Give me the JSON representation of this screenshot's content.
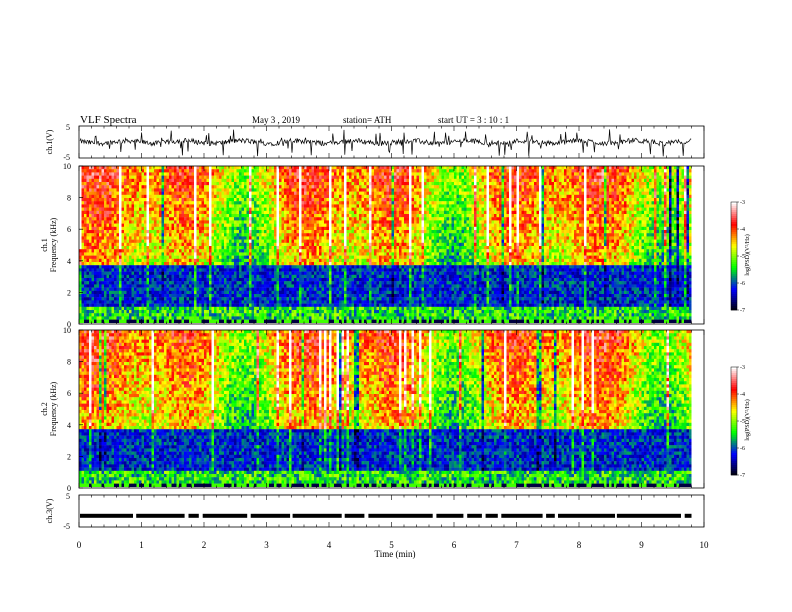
{
  "header": {
    "title": "VLF Spectra",
    "date": "May 3 , 2019",
    "station": "station= ATH",
    "start": "start UT = 3 : 10 : 1"
  },
  "colors": {
    "colormap": [
      "#000000",
      "#0000ff",
      "#00ff00",
      "#ffff00",
      "#ff0000",
      "#ffffff"
    ],
    "trace": "#000000"
  },
  "chart_data": [
    {
      "type": "line",
      "name": "ch1-waveform",
      "ylabel": "ch.1(V)",
      "ylim": [
        -5,
        5
      ],
      "yticks": [
        "5",
        "-5"
      ],
      "xlim": [
        0,
        10
      ],
      "baseline": 0
    },
    {
      "type": "heatmap",
      "name": "ch1-spectrogram",
      "ylabel_channel": "ch.1",
      "ylabel": "Frequency (kHz)",
      "ylim": [
        0,
        10
      ],
      "yticks": [
        "0",
        "2",
        "4",
        "6",
        "8",
        "10"
      ],
      "xlim": [
        0,
        9.8
      ],
      "colorbar": {
        "label": "log(PSD)(V²/Hz)",
        "range": [
          -7,
          -3
        ],
        "ticks": [
          "-3",
          "-4",
          "-5",
          "-6",
          "-7"
        ]
      }
    },
    {
      "type": "heatmap",
      "name": "ch2-spectrogram",
      "ylabel_channel": "ch.2",
      "ylabel": "Frequency (kHz)",
      "ylim": [
        0,
        10
      ],
      "yticks": [
        "0",
        "2",
        "4",
        "6",
        "8",
        "10"
      ],
      "xlim": [
        0,
        9.8
      ],
      "colorbar": {
        "label": "log(PSD)(V²/Hz)",
        "range": [
          -7,
          -3
        ],
        "ticks": [
          "-3",
          "-4",
          "-5",
          "-6",
          "-7"
        ]
      }
    },
    {
      "type": "line",
      "name": "ch3-waveform",
      "ylabel": "ch.3(V)",
      "ylim": [
        -5,
        5
      ],
      "yticks": [
        "5",
        "-5"
      ],
      "xlim": [
        0,
        10
      ],
      "baseline": -1.5
    }
  ],
  "xaxis": {
    "label": "Time (min)",
    "range": [
      0,
      10
    ],
    "ticks": [
      "0",
      "1",
      "2",
      "3",
      "4",
      "5",
      "6",
      "7",
      "8",
      "9",
      "10"
    ]
  }
}
